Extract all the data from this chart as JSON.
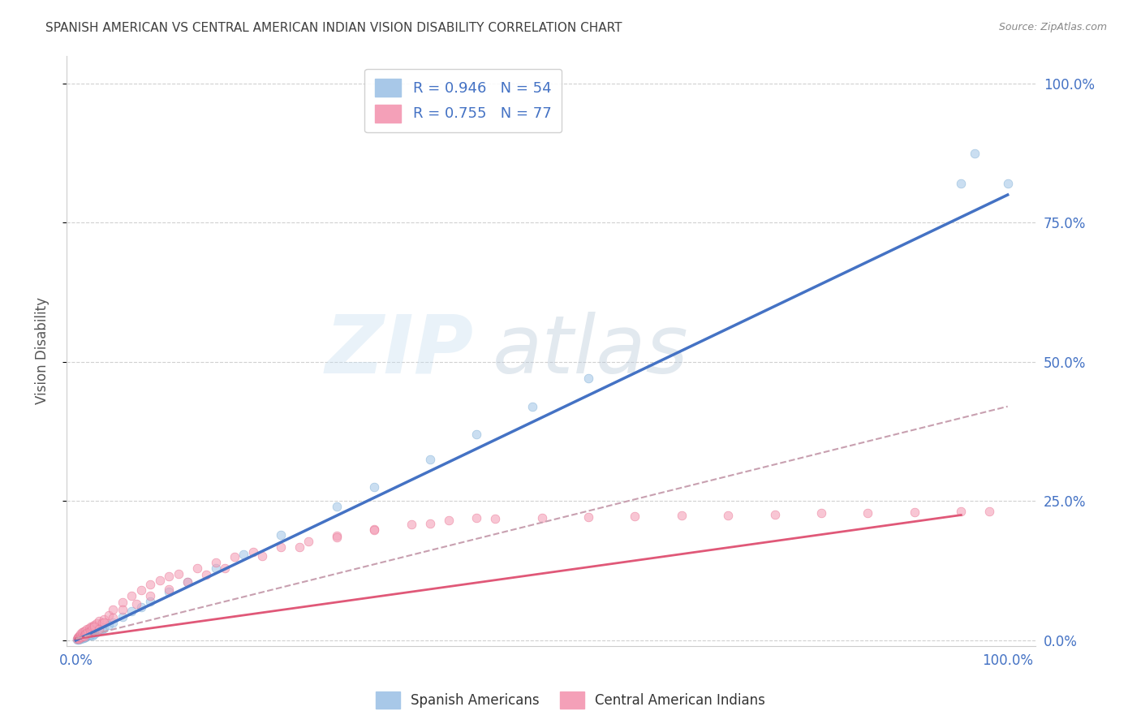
{
  "title": "SPANISH AMERICAN VS CENTRAL AMERICAN INDIAN VISION DISABILITY CORRELATION CHART",
  "source": "Source: ZipAtlas.com",
  "ylabel": "Vision Disability",
  "legend_R_blue": "R = 0.946",
  "legend_N_blue": "N = 54",
  "legend_R_pink": "R = 0.755",
  "legend_N_pink": "N = 77",
  "watermark_top": "ZIP",
  "watermark_bottom": "atlas",
  "scatter_blue": {
    "x": [
      0.001,
      0.002,
      0.002,
      0.003,
      0.003,
      0.004,
      0.004,
      0.005,
      0.005,
      0.006,
      0.006,
      0.007,
      0.007,
      0.008,
      0.008,
      0.009,
      0.01,
      0.01,
      0.011,
      0.012,
      0.012,
      0.013,
      0.014,
      0.015,
      0.015,
      0.016,
      0.017,
      0.018,
      0.019,
      0.02,
      0.022,
      0.025,
      0.028,
      0.03,
      0.035,
      0.04,
      0.05,
      0.06,
      0.07,
      0.08,
      0.1,
      0.12,
      0.15,
      0.18,
      0.22,
      0.28,
      0.32,
      0.38,
      0.43,
      0.49,
      0.55,
      0.95,
      0.965,
      1.0
    ],
    "y": [
      0.002,
      0.003,
      0.004,
      0.002,
      0.005,
      0.003,
      0.006,
      0.004,
      0.007,
      0.003,
      0.008,
      0.005,
      0.009,
      0.004,
      0.01,
      0.006,
      0.005,
      0.009,
      0.008,
      0.01,
      0.012,
      0.009,
      0.011,
      0.008,
      0.013,
      0.01,
      0.012,
      0.009,
      0.014,
      0.011,
      0.015,
      0.018,
      0.02,
      0.022,
      0.028,
      0.032,
      0.042,
      0.052,
      0.06,
      0.07,
      0.088,
      0.105,
      0.13,
      0.155,
      0.19,
      0.24,
      0.275,
      0.325,
      0.37,
      0.42,
      0.47,
      0.82,
      0.875,
      0.82
    ],
    "color": "#a8c8e8",
    "edgecolor": "#7aadd4",
    "alpha": 0.6,
    "size": 60
  },
  "scatter_pink": {
    "x": [
      0.001,
      0.002,
      0.002,
      0.003,
      0.003,
      0.004,
      0.005,
      0.005,
      0.006,
      0.007,
      0.007,
      0.008,
      0.008,
      0.009,
      0.01,
      0.01,
      0.011,
      0.012,
      0.013,
      0.014,
      0.015,
      0.016,
      0.017,
      0.018,
      0.02,
      0.022,
      0.025,
      0.028,
      0.03,
      0.035,
      0.04,
      0.05,
      0.06,
      0.07,
      0.08,
      0.09,
      0.1,
      0.11,
      0.13,
      0.15,
      0.17,
      0.19,
      0.22,
      0.25,
      0.28,
      0.32,
      0.36,
      0.4,
      0.45,
      0.5,
      0.55,
      0.6,
      0.65,
      0.7,
      0.75,
      0.8,
      0.85,
      0.9,
      0.95,
      0.98,
      0.02,
      0.025,
      0.03,
      0.04,
      0.05,
      0.065,
      0.08,
      0.1,
      0.12,
      0.14,
      0.16,
      0.2,
      0.24,
      0.28,
      0.32,
      0.38,
      0.43
    ],
    "y": [
      0.003,
      0.004,
      0.006,
      0.003,
      0.007,
      0.005,
      0.008,
      0.012,
      0.006,
      0.01,
      0.014,
      0.009,
      0.016,
      0.007,
      0.011,
      0.018,
      0.013,
      0.02,
      0.015,
      0.022,
      0.017,
      0.024,
      0.019,
      0.025,
      0.028,
      0.03,
      0.035,
      0.032,
      0.038,
      0.045,
      0.055,
      0.068,
      0.08,
      0.09,
      0.1,
      0.108,
      0.115,
      0.12,
      0.13,
      0.14,
      0.15,
      0.158,
      0.168,
      0.178,
      0.188,
      0.2,
      0.208,
      0.215,
      0.218,
      0.22,
      0.222,
      0.223,
      0.224,
      0.225,
      0.226,
      0.228,
      0.229,
      0.23,
      0.231,
      0.232,
      0.025,
      0.02,
      0.032,
      0.04,
      0.055,
      0.065,
      0.08,
      0.092,
      0.105,
      0.118,
      0.13,
      0.152,
      0.168,
      0.185,
      0.198,
      0.21,
      0.22
    ],
    "color": "#f4a0b8",
    "edgecolor": "#e87090",
    "alpha": 0.6,
    "size": 60
  },
  "trendline_blue": {
    "x": [
      0.0,
      1.0
    ],
    "y": [
      0.0,
      0.8
    ],
    "color": "#4472c4",
    "linewidth": 2.5
  },
  "trendline_pink_solid": {
    "x": [
      0.0,
      0.95
    ],
    "y": [
      0.003,
      0.225
    ],
    "color": "#e05878",
    "linewidth": 2.0
  },
  "trendline_pink_dashed": {
    "x": [
      0.0,
      1.0
    ],
    "y": [
      0.003,
      0.42
    ],
    "color": "#c8a0b0",
    "linewidth": 1.5,
    "linestyle": "--"
  },
  "xlim": [
    -0.01,
    1.03
  ],
  "ylim": [
    -0.01,
    1.05
  ],
  "y_tick_positions": [
    0.0,
    0.25,
    0.5,
    0.75,
    1.0
  ],
  "y_tick_labels": [
    "0.0%",
    "25.0%",
    "50.0%",
    "75.0%",
    "100.0%"
  ],
  "x_tick_positions": [
    0.0,
    1.0
  ],
  "x_tick_labels": [
    "0.0%",
    "100.0%"
  ],
  "background_color": "#ffffff",
  "grid_color": "#d0d0d0",
  "title_color": "#404040",
  "axis_label_color": "#555555",
  "tick_color_blue": "#4472c4",
  "legend_text_color": "#4472c4",
  "source_color": "#888888",
  "watermark_color_zip": "#c8dff0",
  "watermark_color_atlas": "#b8c8d8",
  "watermark_alpha": 0.4
}
